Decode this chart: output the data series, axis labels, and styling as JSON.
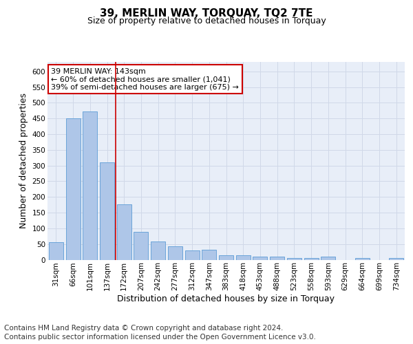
{
  "title": "39, MERLIN WAY, TORQUAY, TQ2 7TE",
  "subtitle": "Size of property relative to detached houses in Torquay",
  "xlabel": "Distribution of detached houses by size in Torquay",
  "ylabel": "Number of detached properties",
  "categories": [
    "31sqm",
    "66sqm",
    "101sqm",
    "137sqm",
    "172sqm",
    "207sqm",
    "242sqm",
    "277sqm",
    "312sqm",
    "347sqm",
    "383sqm",
    "418sqm",
    "453sqm",
    "488sqm",
    "523sqm",
    "558sqm",
    "593sqm",
    "629sqm",
    "664sqm",
    "699sqm",
    "734sqm"
  ],
  "values": [
    55,
    450,
    472,
    311,
    176,
    88,
    58,
    43,
    30,
    32,
    15,
    15,
    10,
    10,
    6,
    5,
    9,
    0,
    5,
    0,
    5
  ],
  "bar_color": "#aec6e8",
  "bar_edge_color": "#5b9bd5",
  "red_line_index": 3,
  "annotation_line1": "39 MERLIN WAY: 143sqm",
  "annotation_line2": "← 60% of detached houses are smaller (1,041)",
  "annotation_line3": "39% of semi-detached houses are larger (675) →",
  "annotation_box_color": "#ffffff",
  "annotation_box_edge_color": "#cc0000",
  "red_line_color": "#cc0000",
  "grid_color": "#d0d8e8",
  "background_color": "#e8eef8",
  "ylim": [
    0,
    630
  ],
  "yticks": [
    0,
    50,
    100,
    150,
    200,
    250,
    300,
    350,
    400,
    450,
    500,
    550,
    600
  ],
  "footer_line1": "Contains HM Land Registry data © Crown copyright and database right 2024.",
  "footer_line2": "Contains public sector information licensed under the Open Government Licence v3.0.",
  "title_fontsize": 11,
  "subtitle_fontsize": 9,
  "axis_label_fontsize": 9,
  "tick_fontsize": 7.5,
  "annotation_fontsize": 8,
  "footer_fontsize": 7.5
}
